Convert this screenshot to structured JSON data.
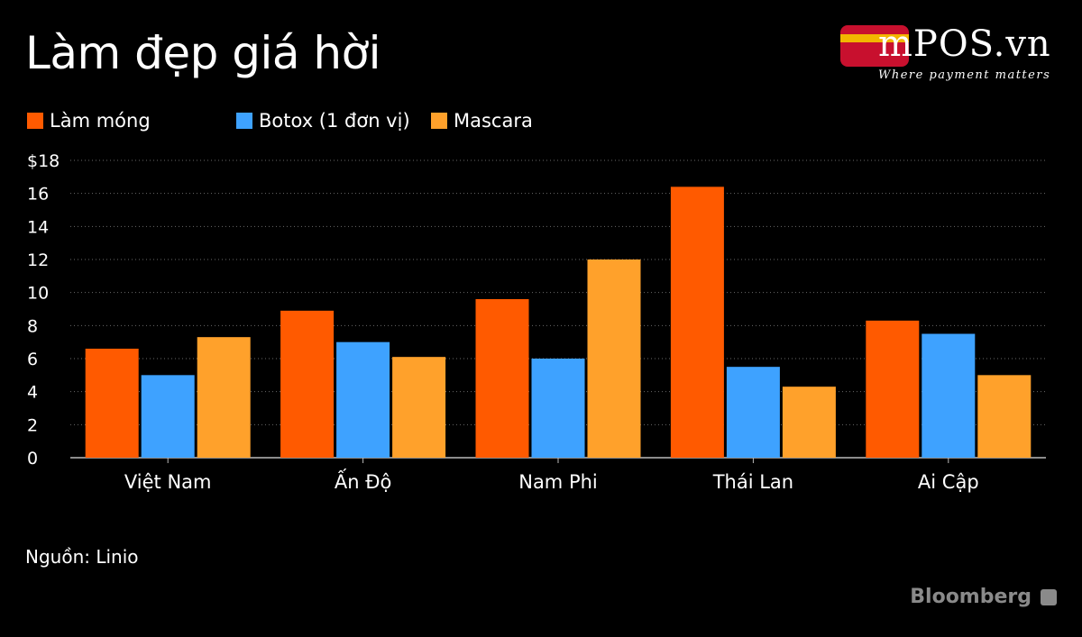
{
  "title": "Làm đẹp giá hời",
  "logo": {
    "brand": "mPOS.vn",
    "tagline": "Where payment matters"
  },
  "source": "Nguồn: Linio",
  "credit": "Bloomberg",
  "chart_data": {
    "type": "bar",
    "categories": [
      "Việt Nam",
      "Ấn Độ",
      "Nam Phi",
      "Thái Lan",
      "Ai Cập"
    ],
    "series": [
      {
        "name": "Làm móng",
        "color": "#ff5a00",
        "values": [
          6.6,
          8.9,
          9.6,
          16.4,
          8.3
        ]
      },
      {
        "name": "Botox (1 đơn vị)",
        "color": "#3ea2ff",
        "values": [
          5.0,
          7.0,
          6.0,
          5.5,
          7.5
        ]
      },
      {
        "name": "Mascara",
        "color": "#ffa12b",
        "values": [
          7.3,
          6.1,
          12.0,
          4.3,
          5.0
        ]
      }
    ],
    "yticks": [
      "0",
      "2",
      "4",
      "6",
      "8",
      "10",
      "12",
      "14",
      "16",
      "$18"
    ],
    "ylim": [
      0,
      18
    ],
    "grid": true,
    "legend_position": "top-left"
  }
}
